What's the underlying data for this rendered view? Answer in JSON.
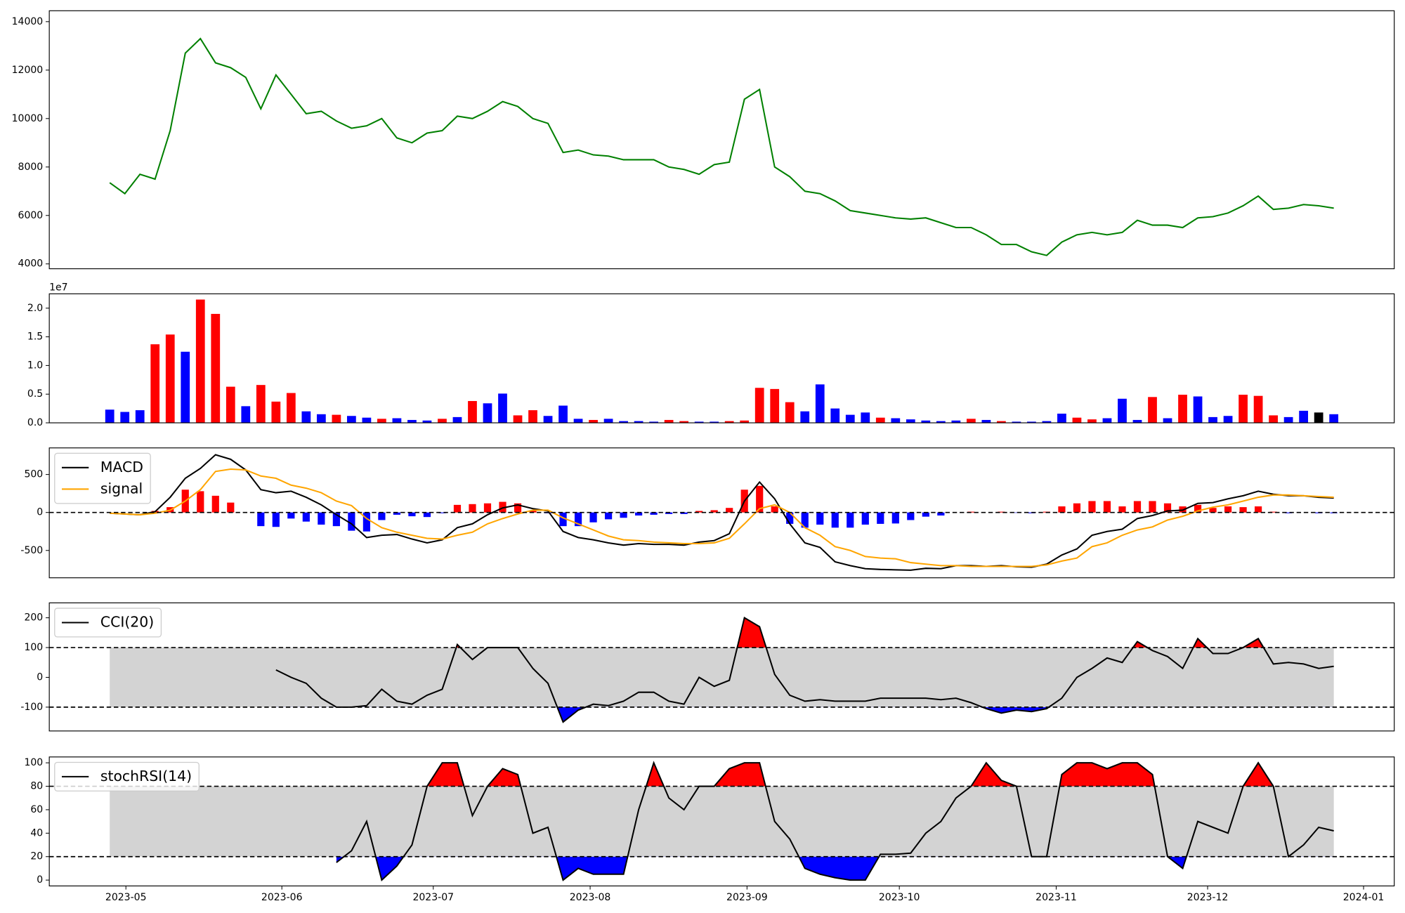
{
  "chart_data": [
    {
      "type": "line",
      "xlim": [
        -4,
        85
      ],
      "ylim": [
        3800,
        14450
      ],
      "yticks": [
        4000,
        6000,
        8000,
        10000,
        12000,
        14000
      ],
      "color": "green",
      "values": [
        7350,
        6900,
        7700,
        7500,
        9500,
        12700,
        13300,
        12300,
        12100,
        11700,
        10400,
        11800,
        11000,
        10200,
        10300,
        9900,
        9600,
        9700,
        10000,
        9200,
        9000,
        9400,
        9500,
        10100,
        10000,
        10300,
        10700,
        10500,
        10000,
        9800,
        8600,
        8700,
        8500,
        8450,
        8300,
        8300,
        8300,
        8000,
        7900,
        7700,
        8100,
        8200,
        10800,
        11200,
        8000,
        7600,
        7000,
        6900,
        6600,
        6200,
        6100,
        6000,
        5900,
        5850,
        5900,
        5700,
        5500,
        5500,
        5200,
        4800,
        4800,
        4500,
        4350,
        4900,
        5200,
        5300,
        5200,
        5300,
        5800,
        5600,
        5600,
        5500,
        5900,
        5950,
        6100,
        6400,
        6800,
        6250,
        6300,
        6450,
        6400,
        6300
      ]
    },
    {
      "type": "bar",
      "xlim": [
        -4,
        85
      ],
      "ylim": [
        0,
        22500000
      ],
      "offset_label": "1e7",
      "yticks": [
        {
          "value": 0,
          "label": "0.0"
        },
        {
          "value": 5000000,
          "label": "0.5"
        },
        {
          "value": 10000000,
          "label": "1.0"
        },
        {
          "value": 15000000,
          "label": "1.5"
        },
        {
          "value": 20000000,
          "label": "2.0"
        }
      ],
      "values": [
        2300000,
        1900000,
        2200000,
        13700000,
        15400000,
        12400000,
        21500000,
        19000000,
        6300000,
        2900000,
        6600000,
        3700000,
        5200000,
        2000000,
        1500000,
        1400000,
        1200000,
        900000,
        700000,
        800000,
        500000,
        400000,
        700000,
        1000000,
        3800000,
        3400000,
        5100000,
        1300000,
        2200000,
        1200000,
        3000000,
        700000,
        500000,
        700000,
        300000,
        300000,
        200000,
        500000,
        300000,
        200000,
        200000,
        300000,
        400000,
        6100000,
        5900000,
        3600000,
        2000000,
        6700000,
        2500000,
        1400000,
        1800000,
        900000,
        800000,
        600000,
        400000,
        300000,
        400000,
        700000,
        500000,
        300000,
        200000,
        200000,
        300000,
        1600000,
        900000,
        600000,
        800000,
        4200000,
        500000,
        4500000,
        800000,
        4900000,
        4600000,
        1000000,
        1200000,
        4900000,
        4700000,
        1300000,
        1000000,
        2100000,
        1800000,
        1500000
      ],
      "colors": [
        "blue",
        "blue",
        "blue",
        "red",
        "red",
        "blue",
        "red",
        "red",
        "red",
        "blue",
        "red",
        "red",
        "red",
        "blue",
        "blue",
        "red",
        "blue",
        "blue",
        "red",
        "blue",
        "blue",
        "blue",
        "red",
        "blue",
        "red",
        "blue",
        "blue",
        "red",
        "red",
        "blue",
        "blue",
        "blue",
        "red",
        "blue",
        "blue",
        "blue",
        "blue",
        "red",
        "red",
        "blue",
        "blue",
        "red",
        "red",
        "red",
        "red",
        "red",
        "blue",
        "blue",
        "blue",
        "blue",
        "blue",
        "red",
        "blue",
        "blue",
        "blue",
        "blue",
        "blue",
        "red",
        "blue",
        "red",
        "blue",
        "blue",
        "blue",
        "blue",
        "red",
        "red",
        "blue",
        "blue",
        "blue",
        "red",
        "blue",
        "red",
        "blue",
        "blue",
        "blue",
        "red",
        "red",
        "red",
        "blue",
        "blue",
        "black",
        "blue"
      ]
    },
    {
      "type": "macd",
      "xlim": [
        -4,
        85
      ],
      "ylim": [
        -860,
        850
      ],
      "yticks": [
        -500,
        0,
        500
      ],
      "reference_lines": [
        0
      ],
      "legend": "upper left",
      "histogram": {
        "pos_color": "red",
        "neg_color": "blue",
        "values": [
          0,
          0,
          0,
          20,
          70,
          300,
          280,
          220,
          130,
          0,
          -180,
          -190,
          -80,
          -120,
          -160,
          -180,
          -240,
          -250,
          -100,
          -30,
          -50,
          -60,
          -10,
          100,
          110,
          120,
          140,
          120,
          20,
          -10,
          -180,
          -180,
          -130,
          -90,
          -70,
          -40,
          -30,
          -20,
          -20,
          20,
          30,
          60,
          300,
          350,
          80,
          -150,
          -200,
          -160,
          -200,
          -200,
          -160,
          -150,
          -145,
          -100,
          -55,
          -40,
          0,
          10,
          0,
          10,
          -5,
          -10,
          10,
          80,
          120,
          150,
          150,
          80,
          150,
          150,
          120,
          80,
          100,
          60,
          80,
          70,
          80,
          10,
          -10,
          0,
          -10,
          -10
        ]
      },
      "series": [
        {
          "name": "MACD",
          "color": "black",
          "values": [
            -10,
            -20,
            -30,
            10,
            200,
            450,
            580,
            760,
            700,
            560,
            300,
            260,
            280,
            200,
            100,
            -30,
            -150,
            -330,
            -300,
            -290,
            -350,
            -400,
            -360,
            -200,
            -150,
            -30,
            60,
            100,
            50,
            20,
            -250,
            -330,
            -360,
            -400,
            -430,
            -410,
            -420,
            -420,
            -430,
            -390,
            -370,
            -280,
            150,
            400,
            180,
            -150,
            -400,
            -460,
            -650,
            -700,
            -740,
            -750,
            -755,
            -760,
            -735,
            -740,
            -700,
            -700,
            -710,
            -700,
            -715,
            -720,
            -680,
            -560,
            -480,
            -300,
            -250,
            -220,
            -80,
            -40,
            20,
            30,
            120,
            130,
            180,
            220,
            280,
            240,
            220,
            220,
            200,
            190
          ]
        },
        {
          "name": "signal",
          "color": "orange",
          "values": [
            -10,
            -20,
            -30,
            -10,
            30,
            150,
            300,
            540,
            570,
            560,
            480,
            450,
            360,
            320,
            260,
            150,
            90,
            -80,
            -200,
            -260,
            -300,
            -340,
            -350,
            -300,
            -260,
            -150,
            -80,
            -20,
            30,
            30,
            -70,
            -150,
            -230,
            -310,
            -360,
            -370,
            -390,
            -400,
            -410,
            -410,
            -400,
            -340,
            -150,
            50,
            100,
            0,
            -200,
            -300,
            -450,
            -500,
            -580,
            -600,
            -610,
            -660,
            -680,
            -700,
            -700,
            -710,
            -710,
            -710,
            -710,
            -710,
            -690,
            -640,
            -600,
            -450,
            -400,
            -300,
            -230,
            -190,
            -100,
            -50,
            20,
            70,
            100,
            150,
            200,
            230,
            230,
            220,
            210,
            200
          ]
        }
      ]
    },
    {
      "type": "indicator",
      "xlim": [
        -4,
        85
      ],
      "ylim": [
        -180,
        250
      ],
      "yticks": [
        -100,
        0,
        100,
        200
      ],
      "reference_lines": [
        100,
        -100
      ],
      "band_color": "lightgray",
      "fill_above": "red",
      "fill_below": "blue",
      "legend": "upper left",
      "series": [
        {
          "name": "CCI(20)",
          "color": "black",
          "values": [
            null,
            null,
            null,
            null,
            null,
            null,
            null,
            null,
            null,
            null,
            null,
            25,
            0,
            -20,
            -70,
            -100,
            -100,
            -95,
            -40,
            -80,
            -90,
            -60,
            -40,
            110,
            60,
            100,
            100,
            100,
            30,
            -20,
            -150,
            -110,
            -90,
            -95,
            -80,
            -50,
            -50,
            -80,
            -90,
            0,
            -30,
            -10,
            200,
            170,
            10,
            -60,
            -80,
            -75,
            -80,
            -80,
            -80,
            -70,
            -70,
            -70,
            -70,
            -75,
            -70,
            -85,
            -105,
            -120,
            -110,
            -115,
            -105,
            -70,
            0,
            30,
            65,
            50,
            120,
            90,
            70,
            30,
            130,
            80,
            80,
            100,
            130,
            45,
            50,
            45,
            30,
            37
          ]
        }
      ]
    },
    {
      "type": "indicator",
      "xlim": [
        -4,
        85
      ],
      "ylim": [
        -5,
        105
      ],
      "yticks": [
        0,
        20,
        40,
        60,
        80,
        100
      ],
      "reference_lines": [
        80,
        20
      ],
      "band_color": "lightgray",
      "fill_above": "red",
      "fill_below": "blue",
      "legend": "upper left",
      "xticks": [
        {
          "value": 1.07,
          "label": "2023-05"
        },
        {
          "value": 11.39,
          "label": "2023-06"
        },
        {
          "value": 21.41,
          "label": "2023-07"
        },
        {
          "value": 31.79,
          "label": "2023-08"
        },
        {
          "value": 42.17,
          "label": "2023-09"
        },
        {
          "value": 52.25,
          "label": "2023-10"
        },
        {
          "value": 62.63,
          "label": "2023-11"
        },
        {
          "value": 72.65,
          "label": "2023-12"
        },
        {
          "value": 82.97,
          "label": "2024-01"
        }
      ],
      "series": [
        {
          "name": "stochRSI(14)",
          "color": "black",
          "values": [
            null,
            null,
            null,
            null,
            null,
            null,
            null,
            null,
            null,
            null,
            null,
            null,
            null,
            null,
            null,
            15,
            25,
            50,
            0,
            12,
            30,
            80,
            100,
            100,
            55,
            80,
            95,
            90,
            40,
            45,
            0,
            10,
            5,
            5,
            5,
            60,
            100,
            70,
            60,
            80,
            80,
            95,
            100,
            100,
            50,
            35,
            10,
            5,
            2,
            0,
            0,
            22,
            22,
            23,
            40,
            50,
            70,
            80,
            100,
            85,
            80,
            20,
            20,
            90,
            100,
            100,
            95,
            100,
            100,
            90,
            20,
            10,
            50,
            45,
            40,
            80,
            100,
            80,
            20,
            30,
            45,
            42
          ]
        }
      ]
    }
  ]
}
